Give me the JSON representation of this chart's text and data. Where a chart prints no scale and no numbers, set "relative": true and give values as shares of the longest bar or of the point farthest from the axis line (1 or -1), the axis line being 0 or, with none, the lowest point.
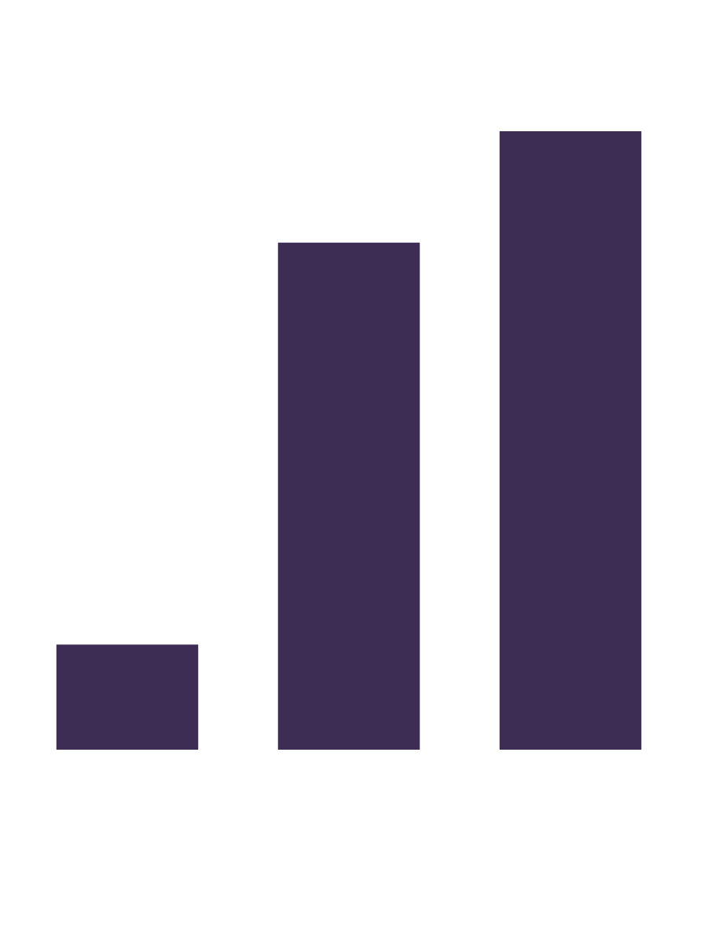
{
  "chart_data": {
    "type": "bar",
    "relative": true,
    "categories": [
      null,
      null,
      null
    ],
    "values": [
      0.17,
      0.82,
      1
    ],
    "color": "#3d2d55"
  }
}
